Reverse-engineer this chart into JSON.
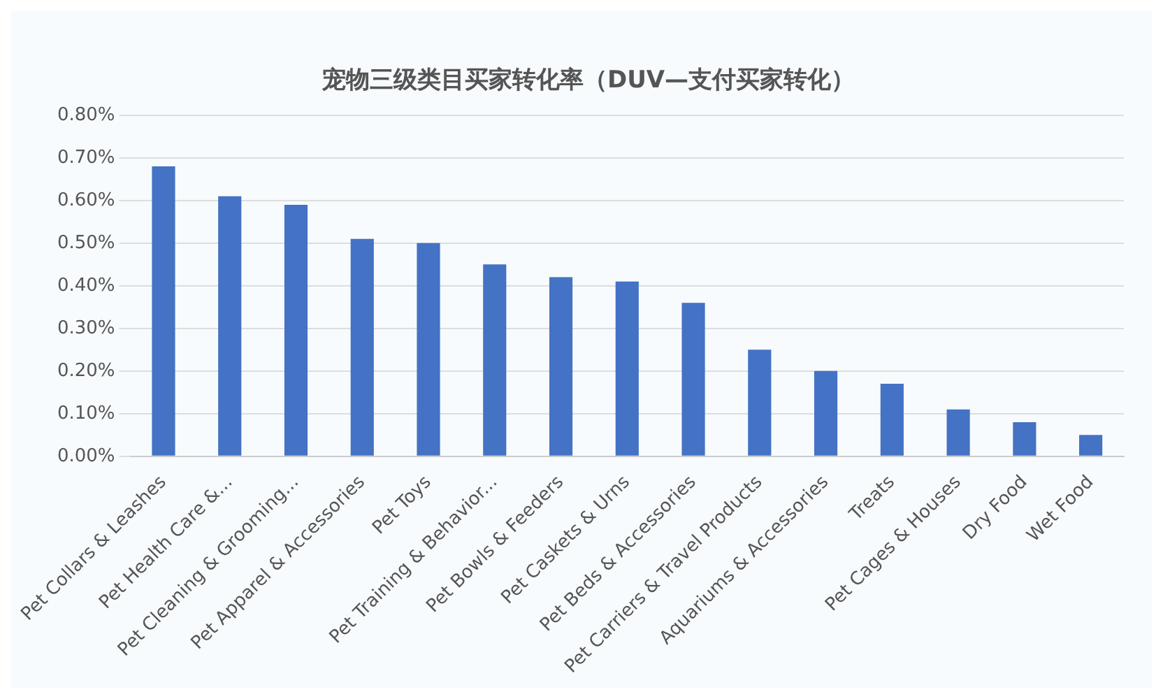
{
  "chart_data": {
    "type": "bar",
    "title": "宠物三级类目买家转化率（DUV—支付买家转化）",
    "categories": [
      "Pet Collars & Leashes",
      "Pet Health Care &...",
      "Pet Cleaning & Grooming...",
      "Pet Apparel & Accessories",
      "Pet Toys",
      "Pet Training & Behavior...",
      "Pet Bowls & Feeders",
      "Pet Caskets & Urns",
      "Pet Beds & Accessories",
      "Pet Carriers & Travel Products",
      "Aquariums & Accessories",
      "Treats",
      "Pet Cages & Houses",
      "Dry Food",
      "Wet Food"
    ],
    "values": [
      0.68,
      0.61,
      0.59,
      0.51,
      0.5,
      0.45,
      0.42,
      0.41,
      0.36,
      0.25,
      0.2,
      0.17,
      0.11,
      0.08,
      0.05
    ],
    "color": "#4472c4",
    "ylim": [
      0,
      0.8
    ],
    "yticks": [
      {
        "value": 0,
        "label": "0.00%"
      },
      {
        "value": 0.1,
        "label": "0.10%"
      },
      {
        "value": 0.2,
        "label": "0.20%"
      },
      {
        "value": 0.3,
        "label": "0.30%"
      },
      {
        "value": 0.4,
        "label": "0.40%"
      },
      {
        "value": 0.5,
        "label": "0.50%"
      },
      {
        "value": 0.6,
        "label": "0.60%"
      },
      {
        "value": 0.7,
        "label": "0.70%"
      },
      {
        "value": 0.8,
        "label": "0.80%"
      }
    ],
    "grid": "y"
  }
}
